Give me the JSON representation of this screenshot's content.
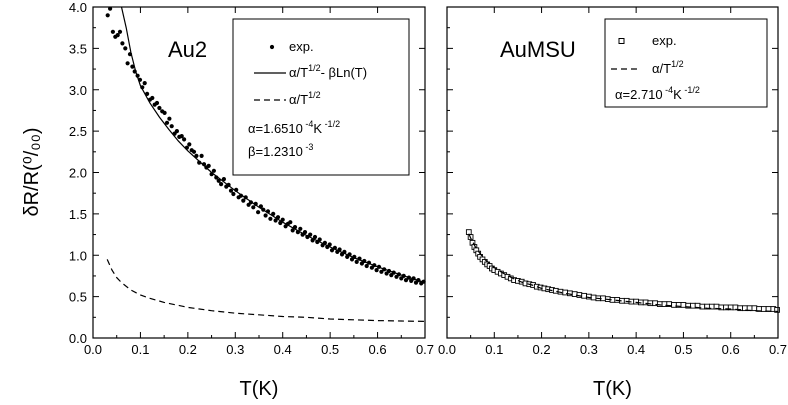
{
  "y_label": "δR/R(⁰/₀₀)",
  "chart_data": [
    {
      "type": "scatter",
      "title": "Au2",
      "xlabel": "T(K)",
      "ylabel": "δR/R(⁰/₀₀)",
      "xlim": [
        0.0,
        0.7
      ],
      "ylim": [
        0.0,
        4.0
      ],
      "x_ticks": [
        "0.0",
        "0.1",
        "0.2",
        "0.3",
        "0.4",
        "0.5",
        "0.6",
        "0.7"
      ],
      "y_ticks": [
        "0.0",
        "0.5",
        "1.0",
        "1.5",
        "2.0",
        "2.5",
        "3.0",
        "3.5",
        "4.0"
      ],
      "legend": {
        "position": "top-right",
        "entries": [
          {
            "symbol": "dot",
            "label": "exp."
          },
          {
            "symbol": "solid",
            "label": "α/T^1/2 - βLn(T)"
          },
          {
            "symbol": "dashed",
            "label": "α/T^1/2"
          }
        ],
        "params": [
          "α=1.6510 -4 K -1/2",
          "β=1.2310 -3"
        ]
      },
      "series": [
        {
          "name": "exp.",
          "marker": "dot",
          "x": [
            0.031,
            0.036,
            0.042,
            0.047,
            0.052,
            0.057,
            0.062,
            0.068,
            0.073,
            0.078,
            0.083,
            0.088,
            0.094,
            0.099,
            0.104,
            0.109,
            0.114,
            0.12,
            0.125,
            0.13,
            0.135,
            0.14,
            0.146,
            0.151,
            0.156,
            0.161,
            0.166,
            0.172,
            0.177,
            0.182,
            0.187,
            0.192,
            0.198,
            0.203,
            0.208,
            0.213,
            0.218,
            0.224,
            0.229,
            0.234,
            0.239,
            0.244,
            0.25,
            0.255,
            0.26,
            0.265,
            0.27,
            0.276,
            0.281,
            0.286,
            0.291,
            0.296,
            0.302,
            0.307,
            0.312,
            0.317,
            0.322,
            0.328,
            0.333,
            0.338,
            0.343,
            0.348,
            0.354,
            0.359,
            0.364,
            0.369,
            0.374,
            0.38,
            0.385,
            0.39,
            0.395,
            0.4,
            0.406,
            0.411,
            0.416,
            0.421,
            0.426,
            0.432,
            0.437,
            0.442,
            0.447,
            0.452,
            0.458,
            0.463,
            0.468,
            0.473,
            0.478,
            0.484,
            0.489,
            0.494,
            0.499,
            0.504,
            0.51,
            0.515,
            0.52,
            0.525,
            0.53,
            0.536,
            0.541,
            0.546,
            0.551,
            0.556,
            0.562,
            0.567,
            0.572,
            0.577,
            0.582,
            0.588,
            0.593,
            0.598,
            0.603,
            0.608,
            0.614,
            0.619,
            0.624,
            0.629,
            0.634,
            0.64,
            0.645,
            0.65,
            0.655,
            0.66,
            0.666,
            0.671,
            0.676,
            0.681,
            0.686,
            0.692,
            0.697
          ],
          "y": [
            3.9,
            3.98,
            3.7,
            3.64,
            3.66,
            3.7,
            3.56,
            3.5,
            3.32,
            3.43,
            3.28,
            3.22,
            3.17,
            3.12,
            3.03,
            3.08,
            2.95,
            2.88,
            2.9,
            2.82,
            2.84,
            2.78,
            2.74,
            2.72,
            2.6,
            2.65,
            2.56,
            2.47,
            2.5,
            2.43,
            2.44,
            2.4,
            2.3,
            2.34,
            2.27,
            2.25,
            2.2,
            2.12,
            2.2,
            2.1,
            2.06,
            2.08,
            1.98,
            2.02,
            1.94,
            1.9,
            1.86,
            1.92,
            1.83,
            1.85,
            1.78,
            1.74,
            1.79,
            1.7,
            1.72,
            1.66,
            1.7,
            1.61,
            1.64,
            1.58,
            1.62,
            1.52,
            1.59,
            1.55,
            1.48,
            1.53,
            1.44,
            1.5,
            1.42,
            1.46,
            1.39,
            1.43,
            1.35,
            1.38,
            1.4,
            1.3,
            1.34,
            1.28,
            1.32,
            1.25,
            1.28,
            1.22,
            1.25,
            1.18,
            1.22,
            1.16,
            1.19,
            1.12,
            1.15,
            1.1,
            1.13,
            1.06,
            1.09,
            1.04,
            1.07,
            1.01,
            1.04,
            0.98,
            1.01,
            0.95,
            0.98,
            0.92,
            0.96,
            0.9,
            0.93,
            0.87,
            0.91,
            0.85,
            0.88,
            0.82,
            0.86,
            0.8,
            0.83,
            0.78,
            0.81,
            0.76,
            0.79,
            0.74,
            0.77,
            0.72,
            0.75,
            0.7,
            0.73,
            0.69,
            0.72,
            0.67,
            0.7,
            0.66,
            0.68
          ]
        },
        {
          "name": "α/T^1/2 - βLn(T)",
          "line": "solid",
          "x": [
            0.06,
            0.07,
            0.08,
            0.09,
            0.1,
            0.12,
            0.14,
            0.16,
            0.18,
            0.2,
            0.25,
            0.3,
            0.35,
            0.4,
            0.45,
            0.5,
            0.55,
            0.6,
            0.65,
            0.7
          ],
          "y": [
            4.0,
            3.75,
            3.45,
            3.22,
            3.05,
            2.84,
            2.67,
            2.52,
            2.38,
            2.26,
            2.0,
            1.78,
            1.58,
            1.4,
            1.24,
            1.1,
            0.97,
            0.86,
            0.76,
            0.67
          ]
        },
        {
          "name": "α/T^1/2",
          "line": "dashed",
          "x": [
            0.03,
            0.04,
            0.05,
            0.06,
            0.08,
            0.1,
            0.12,
            0.15,
            0.2,
            0.25,
            0.3,
            0.35,
            0.4,
            0.45,
            0.5,
            0.55,
            0.6,
            0.65,
            0.7
          ],
          "y": [
            0.95,
            0.82,
            0.73,
            0.67,
            0.58,
            0.52,
            0.48,
            0.43,
            0.37,
            0.33,
            0.3,
            0.28,
            0.26,
            0.25,
            0.23,
            0.22,
            0.21,
            0.205,
            0.2
          ]
        }
      ]
    },
    {
      "type": "scatter",
      "title": "AuMSU",
      "xlabel": "T(K)",
      "xlim": [
        0.0,
        0.7
      ],
      "ylim": [
        0.0,
        4.0
      ],
      "x_ticks": [
        "0.0",
        "0.1",
        "0.2",
        "0.3",
        "0.4",
        "0.5",
        "0.6",
        "0.7"
      ],
      "legend": {
        "position": "top-right",
        "entries": [
          {
            "symbol": "open-square",
            "label": "exp."
          },
          {
            "symbol": "dashed",
            "label": "α/T^1/2"
          }
        ],
        "params": [
          "α=2.710 -4 K -1/2"
        ]
      },
      "series": [
        {
          "name": "exp.",
          "marker": "open-square",
          "x": [
            0.046,
            0.05,
            0.054,
            0.058,
            0.062,
            0.066,
            0.07,
            0.075,
            0.08,
            0.085,
            0.09,
            0.095,
            0.1,
            0.107,
            0.114,
            0.121,
            0.128,
            0.135,
            0.142,
            0.15,
            0.158,
            0.166,
            0.174,
            0.182,
            0.19,
            0.198,
            0.206,
            0.214,
            0.222,
            0.23,
            0.24,
            0.25,
            0.26,
            0.27,
            0.28,
            0.29,
            0.3,
            0.31,
            0.32,
            0.33,
            0.34,
            0.35,
            0.36,
            0.37,
            0.38,
            0.39,
            0.4,
            0.41,
            0.42,
            0.43,
            0.44,
            0.45,
            0.46,
            0.47,
            0.48,
            0.49,
            0.5,
            0.51,
            0.52,
            0.53,
            0.54,
            0.55,
            0.56,
            0.57,
            0.58,
            0.59,
            0.6,
            0.61,
            0.62,
            0.63,
            0.64,
            0.65,
            0.66,
            0.67,
            0.68,
            0.69,
            0.698
          ],
          "y": [
            1.28,
            1.22,
            1.15,
            1.1,
            1.06,
            1.02,
            0.98,
            0.95,
            0.92,
            0.89,
            0.87,
            0.84,
            0.82,
            0.8,
            0.78,
            0.76,
            0.74,
            0.72,
            0.7,
            0.69,
            0.68,
            0.66,
            0.65,
            0.64,
            0.62,
            0.61,
            0.6,
            0.59,
            0.58,
            0.57,
            0.56,
            0.55,
            0.54,
            0.53,
            0.52,
            0.51,
            0.5,
            0.49,
            0.48,
            0.48,
            0.47,
            0.46,
            0.46,
            0.45,
            0.45,
            0.44,
            0.44,
            0.43,
            0.43,
            0.42,
            0.42,
            0.41,
            0.41,
            0.41,
            0.4,
            0.4,
            0.4,
            0.39,
            0.39,
            0.39,
            0.38,
            0.38,
            0.38,
            0.38,
            0.37,
            0.37,
            0.37,
            0.37,
            0.36,
            0.36,
            0.36,
            0.36,
            0.35,
            0.35,
            0.35,
            0.35,
            0.34
          ]
        },
        {
          "name": "α/T^1/2",
          "line": "dashed",
          "x": [
            0.046,
            0.05,
            0.06,
            0.07,
            0.08,
            0.09,
            0.1,
            0.12,
            0.14,
            0.16,
            0.18,
            0.2,
            0.25,
            0.3,
            0.35,
            0.4,
            0.45,
            0.5,
            0.55,
            0.6,
            0.65,
            0.7
          ],
          "y": [
            1.26,
            1.21,
            1.1,
            1.02,
            0.95,
            0.9,
            0.85,
            0.78,
            0.72,
            0.67,
            0.64,
            0.6,
            0.54,
            0.49,
            0.46,
            0.43,
            0.4,
            0.38,
            0.36,
            0.35,
            0.33,
            0.32
          ]
        }
      ]
    }
  ]
}
